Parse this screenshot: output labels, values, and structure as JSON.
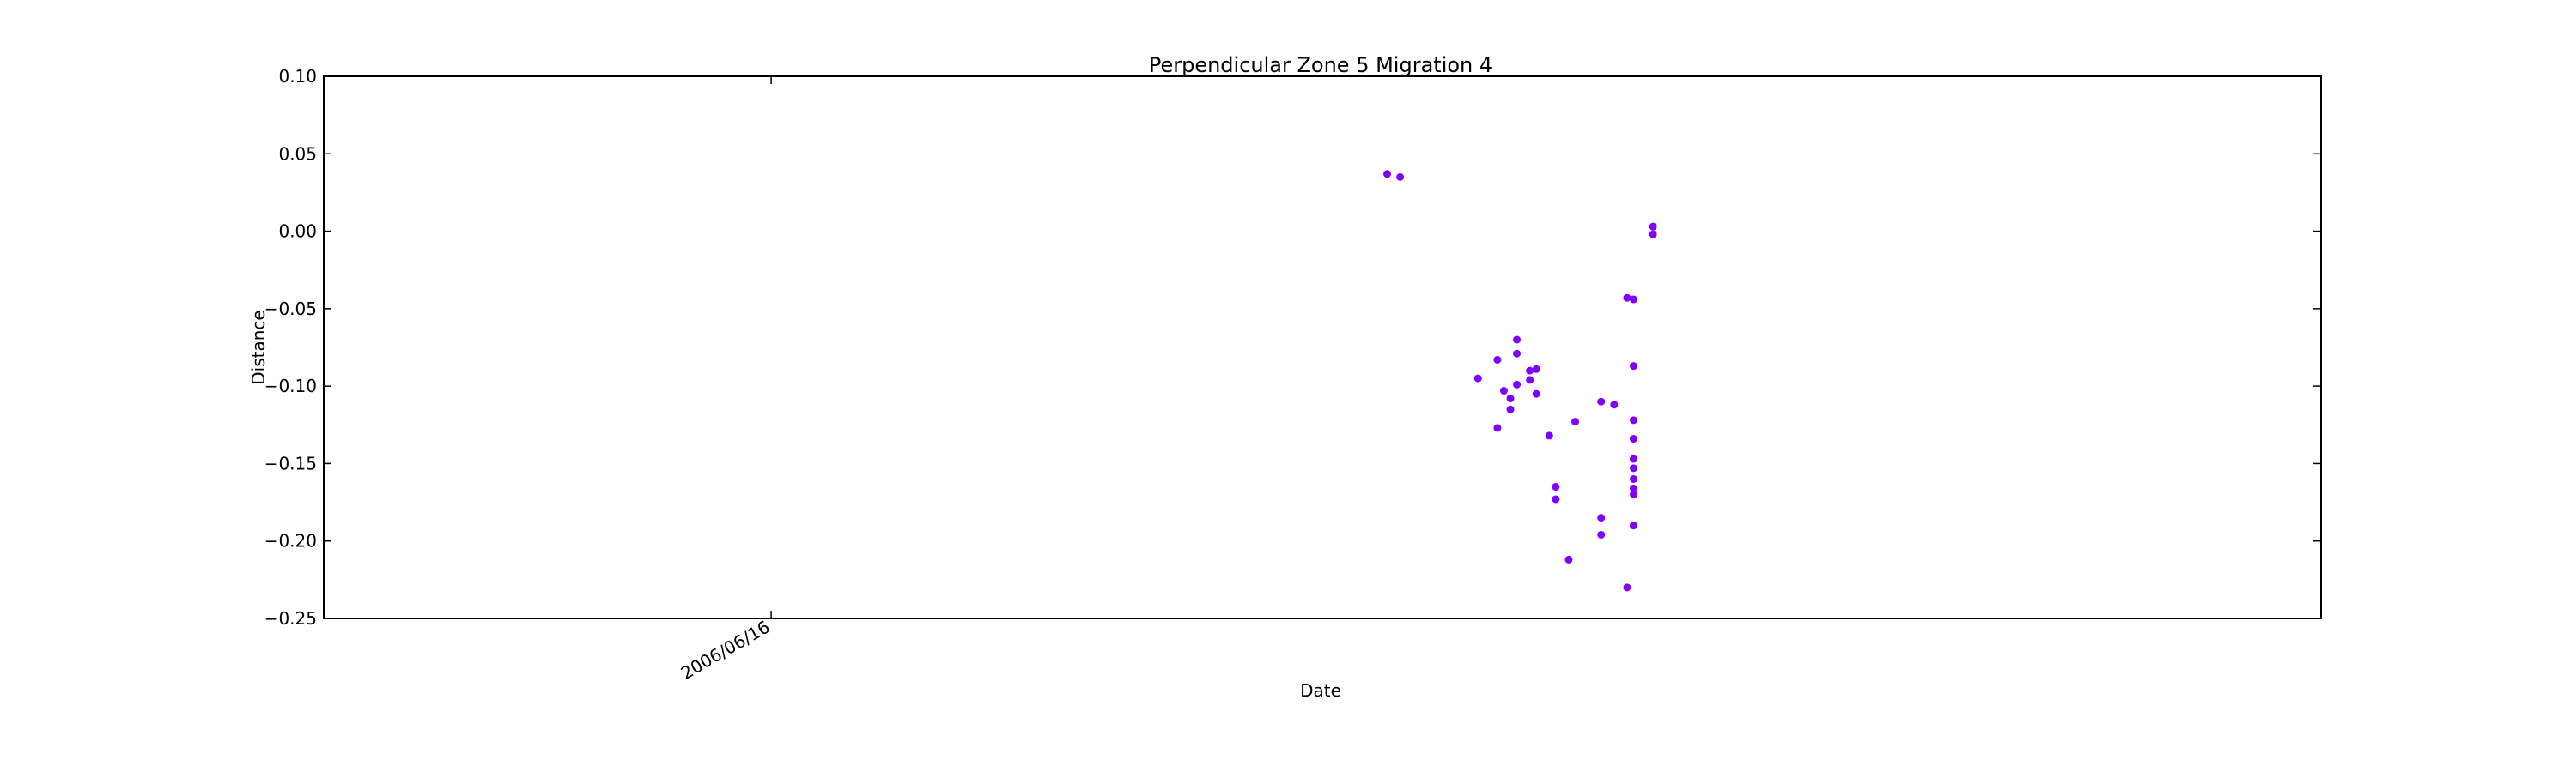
{
  "chart_data": {
    "type": "scatter",
    "title": "Perpendicular Zone 5 Migration 4",
    "xlabel": "Date",
    "ylabel": "Distance",
    "ylim": [
      -0.25,
      0.1
    ],
    "y_ticks": [
      0.1,
      0.05,
      0.0,
      -0.05,
      -0.1,
      -0.15,
      -0.2,
      -0.25
    ],
    "y_tick_labels": [
      "0.10",
      "0.05",
      "0.00",
      "−0.05",
      "−0.10",
      "−0.15",
      "−0.20",
      "−0.25"
    ],
    "x_ticks": [
      "2006-06-16"
    ],
    "x_tick_labels": [
      "2006/06/16"
    ],
    "xlim": [
      "2006-04-08",
      "2007-02-10"
    ],
    "grid": false,
    "marker_color": "#7f00ff",
    "points": [
      {
        "x": "2006-09-19",
        "y": 0.037
      },
      {
        "x": "2006-09-21",
        "y": 0.035
      },
      {
        "x": "2006-10-03",
        "y": -0.095
      },
      {
        "x": "2006-10-06",
        "y": -0.127
      },
      {
        "x": "2006-10-06",
        "y": -0.083
      },
      {
        "x": "2006-10-07",
        "y": -0.103
      },
      {
        "x": "2006-10-08",
        "y": -0.108
      },
      {
        "x": "2006-10-08",
        "y": -0.115
      },
      {
        "x": "2006-10-09",
        "y": -0.099
      },
      {
        "x": "2006-10-09",
        "y": -0.079
      },
      {
        "x": "2006-10-09",
        "y": -0.07
      },
      {
        "x": "2006-10-11",
        "y": -0.096
      },
      {
        "x": "2006-10-11",
        "y": -0.09
      },
      {
        "x": "2006-10-12",
        "y": -0.105
      },
      {
        "x": "2006-10-12",
        "y": -0.089
      },
      {
        "x": "2006-10-14",
        "y": -0.132
      },
      {
        "x": "2006-10-15",
        "y": -0.165
      },
      {
        "x": "2006-10-15",
        "y": -0.173
      },
      {
        "x": "2006-10-17",
        "y": -0.212
      },
      {
        "x": "2006-10-18",
        "y": -0.123
      },
      {
        "x": "2006-10-22",
        "y": -0.11
      },
      {
        "x": "2006-10-22",
        "y": -0.185
      },
      {
        "x": "2006-10-22",
        "y": -0.196
      },
      {
        "x": "2006-10-24",
        "y": -0.112
      },
      {
        "x": "2006-10-26",
        "y": -0.043
      },
      {
        "x": "2006-10-26",
        "y": -0.23
      },
      {
        "x": "2006-10-27",
        "y": -0.044
      },
      {
        "x": "2006-10-27",
        "y": -0.087
      },
      {
        "x": "2006-10-27",
        "y": -0.122
      },
      {
        "x": "2006-10-27",
        "y": -0.134
      },
      {
        "x": "2006-10-27",
        "y": -0.147
      },
      {
        "x": "2006-10-27",
        "y": -0.153
      },
      {
        "x": "2006-10-27",
        "y": -0.16
      },
      {
        "x": "2006-10-27",
        "y": -0.166
      },
      {
        "x": "2006-10-27",
        "y": -0.17
      },
      {
        "x": "2006-10-27",
        "y": -0.19
      },
      {
        "x": "2006-10-30",
        "y": 0.003
      },
      {
        "x": "2006-10-30",
        "y": -0.002
      }
    ]
  }
}
